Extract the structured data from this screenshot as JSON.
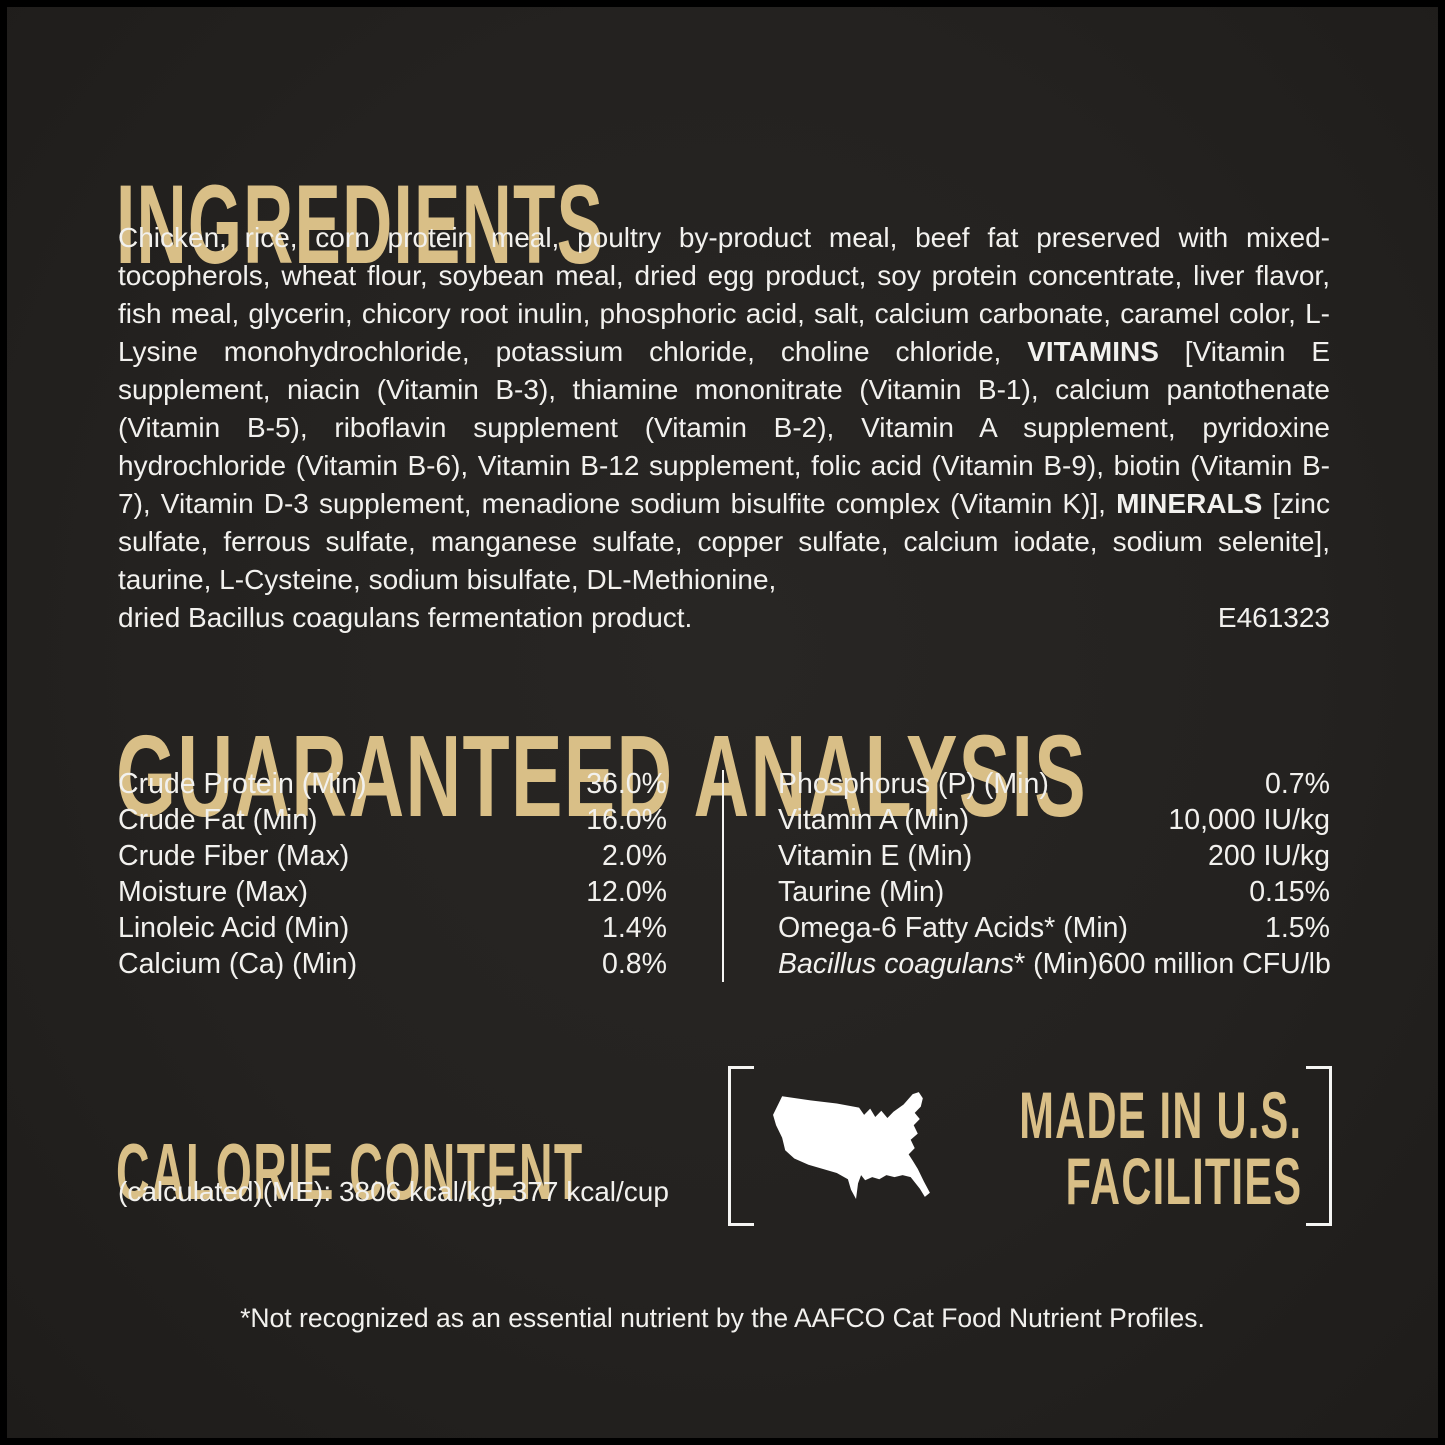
{
  "colors": {
    "background": "#242220",
    "gold": "#d9bf87",
    "text": "#f2f1ee",
    "divider": "#f5f5f3"
  },
  "ingredients": {
    "title": "INGREDIENTS",
    "segments": [
      {
        "text": "Chicken, rice, corn protein meal, poultry by-product meal, beef fat preserved with mixed-tocopherols, wheat flour, soybean meal, dried egg product, soy protein concentrate, liver flavor, fish meal, glycerin, chicory root inulin, phosphoric acid, salt, calcium carbonate, caramel color, L-Lysine monohydrochloride, potassium chloride, choline chloride, ",
        "bold": false
      },
      {
        "text": "VITAMINS",
        "bold": true
      },
      {
        "text": " [Vitamin E supplement, niacin (Vitamin B-3), thiamine mononitrate (Vitamin B-1), calcium pantothenate (Vitamin B-5), riboflavin supplement (Vitamin B-2), Vitamin A supplement, pyridoxine hydrochloride (Vitamin B-6), Vitamin B-12 supplement, folic acid (Vitamin B-9), biotin (Vitamin B-7), Vitamin D-3 supplement, menadione sodium bisulfite complex (Vitamin K)], ",
        "bold": false
      },
      {
        "text": "MINERALS",
        "bold": true
      },
      {
        "text": " [zinc sulfate, ferrous sulfate, manganese sulfate, copper sulfate, calcium iodate, sodium selenite], taurine, L-Cysteine, sodium bisulfate, DL-Methionine,",
        "bold": false
      }
    ],
    "last_line": "dried Bacillus coagulans fermentation product.",
    "code": "E461323"
  },
  "analysis": {
    "title": "GUARANTEED ANALYSIS",
    "left": [
      {
        "label": "Crude Protein (Min)",
        "value": "36.0%"
      },
      {
        "label": "Crude Fat (Min)",
        "value": "16.0%"
      },
      {
        "label": "Crude Fiber (Max)",
        "value": "2.0%"
      },
      {
        "label": "Moisture (Max)",
        "value": "12.0%"
      },
      {
        "label": "Linoleic Acid (Min)",
        "value": "1.4%"
      },
      {
        "label": "Calcium (Ca) (Min)",
        "value": "0.8%"
      }
    ],
    "right": [
      {
        "label": "Phosphorus (P) (Min)",
        "value": "0.7%"
      },
      {
        "label": "Vitamin A (Min)",
        "value": "10,000 IU/kg"
      },
      {
        "label": "Vitamin E (Min)",
        "value": "200 IU/kg"
      },
      {
        "label": "Taurine (Min)",
        "value": "0.15%"
      },
      {
        "label": "Omega-6 Fatty Acids* (Min)",
        "value": "1.5%"
      },
      {
        "label_italic": "Bacillus coagulans",
        "label": "* (Min)",
        "value": "600 million CFU/lb"
      }
    ]
  },
  "calorie": {
    "title": "CALORIE CONTENT",
    "detail": "(calculated)(ME): 3806 kcal/kg, 377 kcal/cup"
  },
  "made_in": {
    "line1": "MADE IN U.S.",
    "line2": "FACILITIES",
    "icon": "us-map-icon"
  },
  "footnote": "*Not recognized as an essential nutrient by the AAFCO Cat Food Nutrient Profiles."
}
